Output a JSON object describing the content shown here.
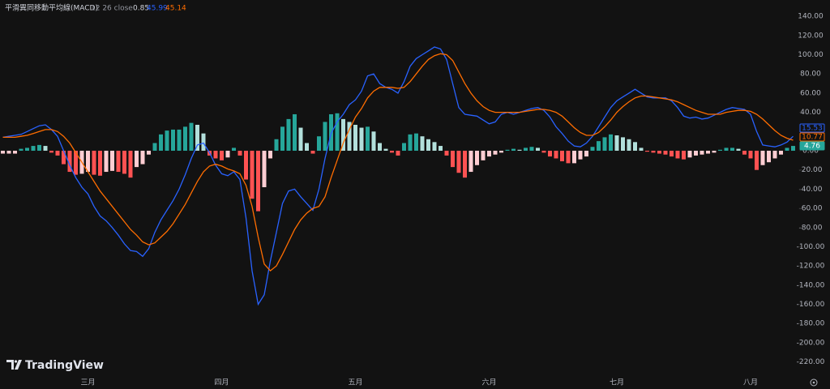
{
  "chart_data": {
    "type": "macd",
    "title": "平滑異同移動平均線(MACD)",
    "params": "12 26 close",
    "watermark": "TradingView",
    "categories": [
      null,
      null,
      null,
      null,
      null,
      null,
      null,
      null,
      null,
      null,
      null,
      null,
      null,
      null,
      "三月",
      null,
      null,
      null,
      null,
      null,
      null,
      null,
      null,
      null,
      null,
      null,
      null,
      null,
      null,
      null,
      null,
      null,
      null,
      null,
      null,
      null,
      "四月",
      null,
      null,
      null,
      null,
      null,
      null,
      null,
      null,
      null,
      null,
      null,
      null,
      null,
      null,
      null,
      null,
      null,
      null,
      null,
      null,
      null,
      "五月",
      null,
      null,
      null,
      null,
      null,
      null,
      null,
      null,
      null,
      null,
      null,
      null,
      null,
      null,
      null,
      null,
      null,
      null,
      null,
      null,
      null,
      "六月",
      null,
      null,
      null,
      null,
      null,
      null,
      null,
      null,
      null,
      null,
      null,
      null,
      null,
      null,
      null,
      null,
      null,
      null,
      null,
      null,
      "七月",
      null,
      null,
      null,
      null,
      null,
      null,
      null,
      null,
      null,
      null,
      null,
      null,
      null,
      null,
      null,
      null,
      null,
      null,
      null,
      null,
      null,
      "八月",
      null,
      null,
      null,
      null,
      null,
      null,
      null
    ],
    "series": [
      {
        "kind": "line",
        "color": "#2962ff",
        "header_value": 45.99,
        "last_label": 15.53,
        "values": [
          14,
          15,
          16,
          17,
          20,
          23,
          26,
          27,
          22,
          15,
          0,
          -15,
          -28,
          -38,
          -45,
          -58,
          -68,
          -73,
          -80,
          -88,
          -97,
          -104,
          -105,
          -110,
          -102,
          -85,
          -72,
          -62,
          -52,
          -40,
          -25,
          -8,
          6,
          8,
          -2,
          -15,
          -24,
          -26,
          -22,
          -30,
          -70,
          -125,
          -160,
          -150,
          -115,
          -85,
          -55,
          -42,
          -40,
          -48,
          -55,
          -62,
          -40,
          -8,
          18,
          30,
          38,
          48,
          53,
          62,
          78,
          80,
          70,
          66,
          64,
          60,
          72,
          88,
          96,
          100,
          104,
          108,
          106,
          95,
          70,
          45,
          38,
          37,
          36,
          32,
          28,
          30,
          38,
          40,
          38,
          40,
          42,
          44,
          45,
          42,
          35,
          25,
          18,
          10,
          5,
          4,
          8,
          15,
          25,
          35,
          45,
          52,
          56,
          60,
          64,
          60,
          56,
          55,
          55,
          55,
          52,
          45,
          36,
          34,
          35,
          33,
          34,
          37,
          40,
          43,
          45,
          44,
          43,
          38,
          20,
          6,
          5,
          4,
          6,
          9,
          15
        ]
      },
      {
        "kind": "line",
        "color": "#ff6d00",
        "header_value": 45.14,
        "last_label": 10.77,
        "values": [
          14,
          14,
          14,
          15,
          16,
          18,
          20,
          22,
          22,
          20,
          15,
          8,
          -2,
          -12,
          -22,
          -32,
          -42,
          -50,
          -58,
          -66,
          -74,
          -82,
          -88,
          -95,
          -98,
          -96,
          -90,
          -84,
          -76,
          -66,
          -56,
          -44,
          -32,
          -22,
          -16,
          -14,
          -16,
          -19,
          -21,
          -24,
          -36,
          -58,
          -90,
          -118,
          -125,
          -120,
          -108,
          -95,
          -82,
          -72,
          -65,
          -60,
          -58,
          -48,
          -28,
          -10,
          8,
          22,
          35,
          44,
          55,
          62,
          66,
          66,
          66,
          65,
          66,
          72,
          80,
          88,
          95,
          99,
          101,
          100,
          94,
          82,
          70,
          60,
          52,
          46,
          42,
          40,
          40,
          40,
          40,
          40,
          41,
          42,
          43,
          43,
          42,
          40,
          36,
          30,
          24,
          19,
          16,
          16,
          19,
          25,
          32,
          40,
          46,
          51,
          55,
          57,
          57,
          56,
          55,
          54,
          53,
          51,
          48,
          45,
          42,
          40,
          38,
          38,
          38,
          40,
          41,
          42,
          42,
          41,
          38,
          33,
          27,
          21,
          16,
          13,
          11
        ]
      },
      {
        "kind": "histogram",
        "header_value": 0.85,
        "last_label": 4.76,
        "colors": {
          "grow_above": "#26a69a",
          "fall_above": "#b2dfdb",
          "grow_below": "#ffcdd2",
          "fall_below": "#ff5252"
        },
        "color": "#26a69a",
        "values": [
          -3,
          -3,
          -3,
          2,
          3,
          5,
          6,
          5,
          -2,
          -5,
          -14,
          -22,
          -25,
          -24,
          -22,
          -25,
          -26,
          -22,
          -21,
          -22,
          -24,
          -28,
          -17,
          -14,
          -4,
          8,
          17,
          21,
          22,
          22,
          25,
          29,
          27,
          18,
          -5,
          -8,
          -10,
          -7,
          3,
          -5,
          -30,
          -50,
          -63,
          -38,
          -8,
          12,
          25,
          33,
          38,
          24,
          8,
          -3,
          15,
          30,
          38,
          39,
          33,
          30,
          27,
          24,
          25,
          20,
          8,
          2,
          -2,
          -5,
          8,
          17,
          18,
          15,
          12,
          9,
          5,
          -5,
          -17,
          -23,
          -28,
          -22,
          -15,
          -10,
          -6,
          -4,
          -2,
          1,
          2,
          1,
          3,
          4,
          3,
          -2,
          -6,
          -8,
          -11,
          -13,
          -13,
          -9,
          -6,
          4,
          10,
          14,
          17,
          16,
          14,
          12,
          9,
          3,
          -1,
          -2,
          -3,
          -4,
          -6,
          -8,
          -9,
          -7,
          -5,
          -4,
          -3,
          -2,
          1,
          3,
          3,
          2,
          -4,
          -8,
          -20,
          -15,
          -12,
          -8,
          -4,
          3,
          5
        ]
      }
    ],
    "ylim": [
      -233,
      157
    ],
    "yticks": [
      {
        "value": 140,
        "label": "140.00"
      },
      {
        "value": 120,
        "label": "120.00"
      },
      {
        "value": 100,
        "label": "100.00"
      },
      {
        "value": 80,
        "label": "80.00"
      },
      {
        "value": 60,
        "label": "60.00"
      },
      {
        "value": 40,
        "label": "40.00"
      },
      {
        "value": 20,
        "label": "20.00"
      },
      {
        "value": 0,
        "label": "0.00"
      },
      {
        "value": -20,
        "label": "-20.00"
      },
      {
        "value": -40,
        "label": "-40.00"
      },
      {
        "value": -60,
        "label": "-60.00"
      },
      {
        "value": -80,
        "label": "-80.00"
      },
      {
        "value": -100,
        "label": "-100.00"
      },
      {
        "value": -120,
        "label": "-120.00"
      },
      {
        "value": -140,
        "label": "-140.00"
      },
      {
        "value": -160,
        "label": "-160.00"
      },
      {
        "value": -180,
        "label": "-180.00"
      },
      {
        "value": -200,
        "label": "-200.00"
      },
      {
        "value": -220,
        "label": "-220.00"
      }
    ],
    "grid": false
  }
}
